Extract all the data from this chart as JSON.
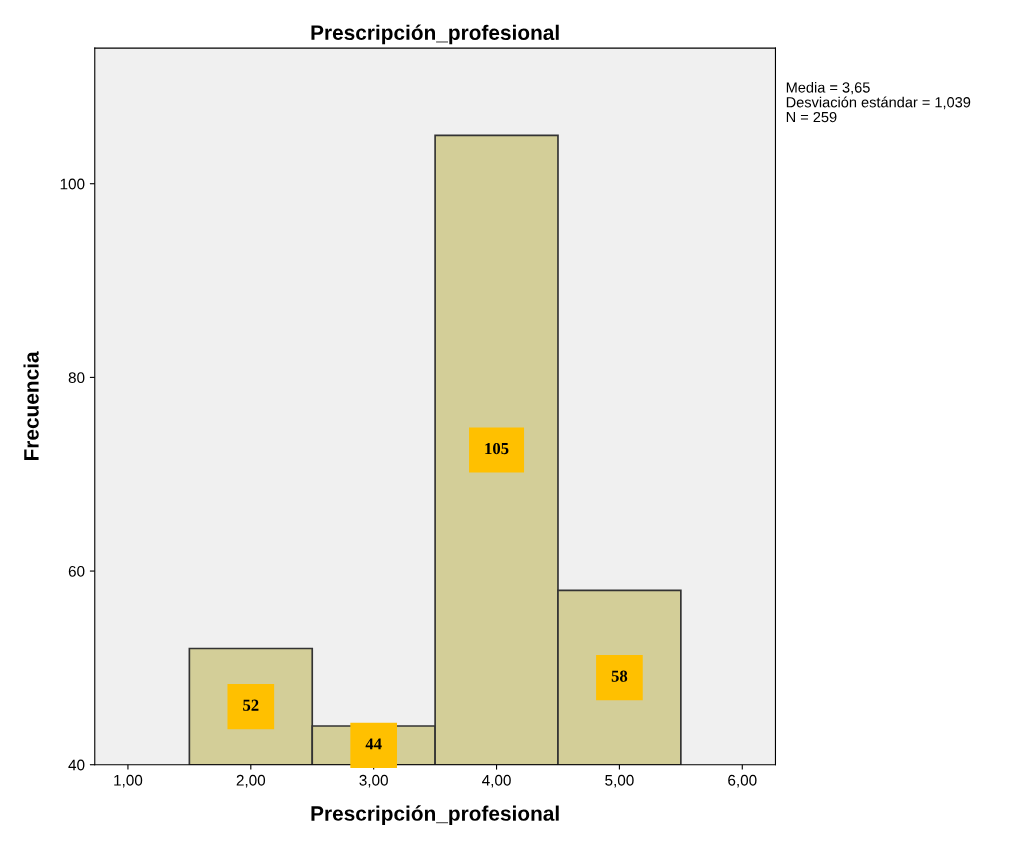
{
  "chart_data": {
    "type": "histogram",
    "title": "Prescripción_profesional",
    "xlabel": "Prescripción_profesional",
    "ylabel": "Frecuencia",
    "bins": [
      1.5,
      2.5,
      3.5,
      4.5,
      5.5
    ],
    "values": [
      52,
      44,
      105,
      58
    ],
    "color": "#d3ce98",
    "data_labels": true,
    "xlim": [
      0.73,
      6.27
    ],
    "ylim": [
      40,
      114
    ],
    "xticks": [
      {
        "value": 1,
        "label": "1,00"
      },
      {
        "value": 2,
        "label": "2,00"
      },
      {
        "value": 3,
        "label": "3,00"
      },
      {
        "value": 4,
        "label": "4,00"
      },
      {
        "value": 5,
        "label": "5,00"
      },
      {
        "value": 6,
        "label": "6,00"
      }
    ],
    "yticks": [
      40,
      60,
      80,
      100
    ],
    "grid": false,
    "annotations": [
      "Media = 3,65",
      "Desviación estándar = 1,039",
      "N = 259"
    ]
  }
}
